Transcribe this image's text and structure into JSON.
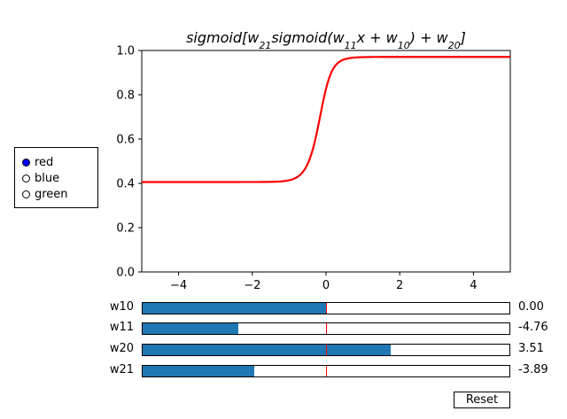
{
  "chart_data": {
    "type": "line",
    "title": "sigmoid[w21 sigmoid(w11 x + w10) + w20]",
    "xlabel": "",
    "ylabel": "",
    "xlim": [
      -5,
      5
    ],
    "ylim": [
      0,
      1
    ],
    "x_ticks": [
      -4,
      -2,
      0,
      2,
      4
    ],
    "y_ticks": [
      0.0,
      0.2,
      0.4,
      0.6,
      0.8,
      1.0
    ],
    "x_tick_labels": [
      "−4",
      "−2",
      "0",
      "2",
      "4"
    ],
    "y_tick_labels": [
      "0.0",
      "0.2",
      "0.4",
      "0.6",
      "0.8",
      "1.0"
    ],
    "grid": false,
    "line_color": "#ff0000",
    "function": "sigmoid(w21*sigmoid(w11*x+w10)+w20)",
    "params": {
      "w10": 0.0,
      "w11": -4.76,
      "w20": 3.51,
      "w21": -3.89
    }
  },
  "radio": {
    "options": [
      "red",
      "blue",
      "green"
    ],
    "selected": "red",
    "selected_color": "#0000ff"
  },
  "sliders": [
    {
      "label": "w10",
      "value": 0.0,
      "display": "0.00",
      "min": -10,
      "max": 10,
      "init": 0
    },
    {
      "label": "w11",
      "value": -4.76,
      "display": "-4.76",
      "min": -10,
      "max": 10,
      "init": 0
    },
    {
      "label": "w20",
      "value": 3.51,
      "display": "3.51",
      "min": -10,
      "max": 10,
      "init": 0
    },
    {
      "label": "w21",
      "value": -3.89,
      "display": "-3.89",
      "min": -10,
      "max": 10,
      "init": 0
    }
  ],
  "reset_label": "Reset",
  "colors": {
    "slider_fill": "#1f77b4",
    "slider_init": "#ff0000"
  }
}
